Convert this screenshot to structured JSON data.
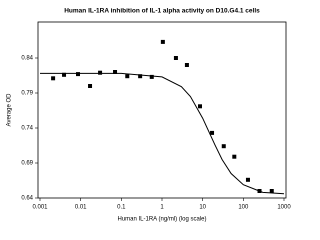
{
  "chart_data": {
    "type": "scatter",
    "title": "Human IL-1RA inhibition of IL-1 alpha activity on D10.G4.1 cells",
    "x_label": "Human IL-1RA (ng/ml) (log scale)",
    "y_label": "Average OD",
    "xscale": "log",
    "xlim": [
      0.001,
      1000
    ],
    "xticks": [
      0.001,
      0.01,
      0.1,
      1,
      10,
      100,
      1000
    ],
    "ylim": [
      0.64,
      0.89
    ],
    "yticks": [
      0.64,
      0.69,
      0.74,
      0.79,
      0.84
    ],
    "grid": false,
    "series": [
      {
        "type": "scatter",
        "color": "#000000",
        "x": [
          0.0021,
          0.0039,
          0.0086,
          0.017,
          0.03,
          0.07,
          0.14,
          0.29,
          0.56,
          1.05,
          2.2,
          4.1,
          8.6,
          17,
          33,
          60,
          130,
          250,
          500
        ],
        "values": [
          0.811,
          0.816,
          0.817,
          0.8,
          0.819,
          0.82,
          0.814,
          0.814,
          0.813,
          0.863,
          0.84,
          0.83,
          0.771,
          0.733,
          0.714,
          0.699,
          0.666,
          0.65,
          0.65
        ]
      },
      {
        "type": "line",
        "color": "#000000",
        "x": [
          0.001,
          0.1,
          1,
          3,
          5,
          10,
          20,
          30,
          50,
          100,
          300,
          1000
        ],
        "values": [
          0.818,
          0.818,
          0.813,
          0.799,
          0.785,
          0.754,
          0.716,
          0.695,
          0.675,
          0.659,
          0.648,
          0.646
        ]
      }
    ]
  }
}
